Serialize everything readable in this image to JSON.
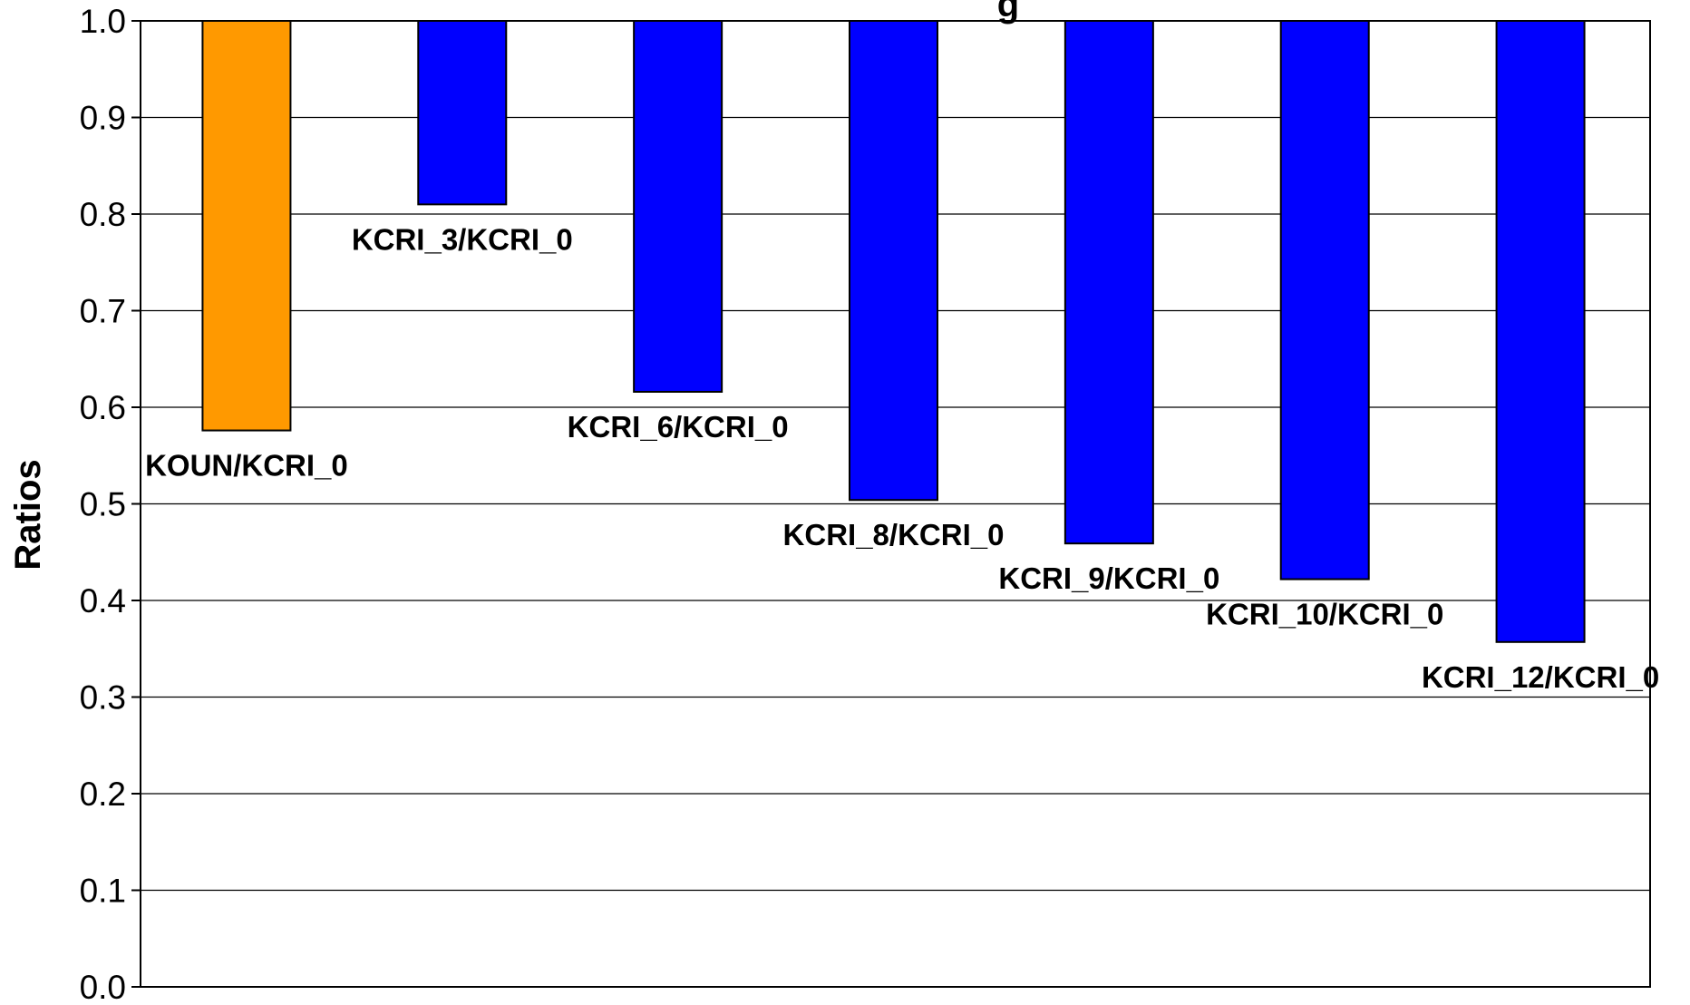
{
  "chart_data": {
    "type": "bar",
    "title": "g",
    "xlabel": "",
    "ylabel": "Ratios",
    "ylim": [
      0.0,
      1.0
    ],
    "baseline": 1.0,
    "grid": true,
    "legend": "none",
    "yticks": [
      "0.0",
      "0.1",
      "0.2",
      "0.3",
      "0.4",
      "0.5",
      "0.6",
      "0.7",
      "0.8",
      "0.9",
      "1.0"
    ],
    "categories": [
      "KOUN/KCRI_0",
      "KCRI_3/KCRI_0",
      "KCRI_6/KCRI_0",
      "KCRI_8/KCRI_0",
      "KCRI_9/KCRI_0",
      "KCRI_10/KCRI_0",
      "KCRI_12/KCRI_0"
    ],
    "values": [
      0.576,
      0.81,
      0.616,
      0.504,
      0.459,
      0.422,
      0.357
    ],
    "colors": [
      "#FF9900",
      "#0000FF",
      "#0000FF",
      "#0000FF",
      "#0000FF",
      "#0000FF",
      "#0000FF"
    ]
  }
}
